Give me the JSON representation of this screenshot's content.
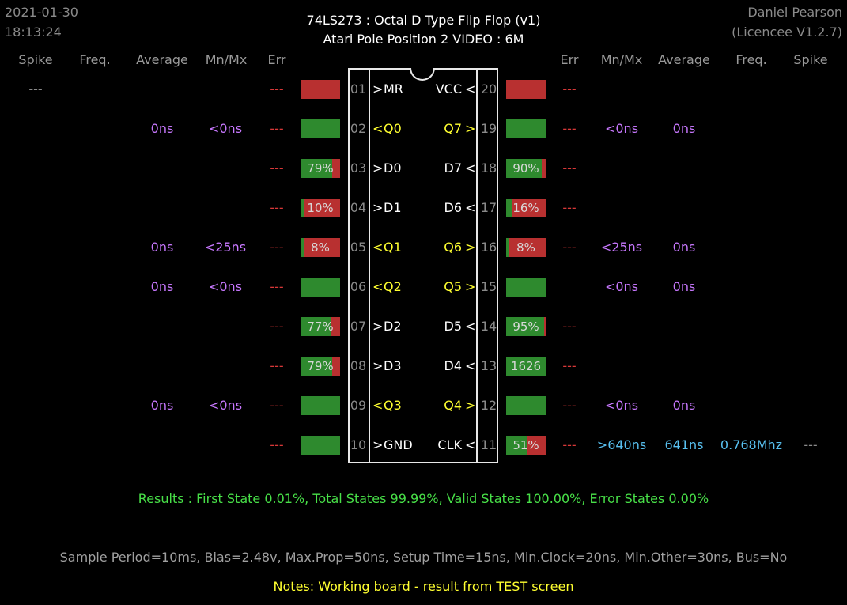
{
  "header": {
    "date": "2021-01-30",
    "time": "18:13:24",
    "title_line1": "74LS273  :  Octal D Type Flip Flop (v1)",
    "title_line2": "Atari Pole Position 2 VIDEO : 6M",
    "author": "Daniel Pearson",
    "licence": "(Licencee V1.2.7)"
  },
  "columns": {
    "left": [
      "Spike",
      "Freq.",
      "Average",
      "Mn/Mx",
      "Err"
    ],
    "right": [
      "Err",
      "Mn/Mx",
      "Average",
      "Freq.",
      "Spike"
    ]
  },
  "left_pins": [
    {
      "num": "01",
      "dir": ">",
      "name": "MR",
      "overline": true,
      "type": "input",
      "err": "---",
      "bar": {
        "fill": 0,
        "label": ""
      },
      "mnmx": "",
      "average": "",
      "freq": "",
      "spike": "---"
    },
    {
      "num": "02",
      "dir": "<",
      "name": "Q0",
      "type": "output",
      "err": "---",
      "bar": {
        "fill": 1,
        "label": ""
      },
      "mnmx": "<0ns",
      "average": "0ns",
      "freq": "",
      "spike": ""
    },
    {
      "num": "03",
      "dir": ">",
      "name": "D0",
      "type": "input",
      "err": "---",
      "bar": {
        "fill": 0.79,
        "label": "79%"
      },
      "mnmx": "",
      "average": "",
      "freq": "",
      "spike": ""
    },
    {
      "num": "04",
      "dir": ">",
      "name": "D1",
      "type": "input",
      "err": "---",
      "bar": {
        "fill": 0.1,
        "label": "10%"
      },
      "mnmx": "",
      "average": "",
      "freq": "",
      "spike": ""
    },
    {
      "num": "05",
      "dir": "<",
      "name": "Q1",
      "type": "output",
      "err": "---",
      "bar": {
        "fill": 0.08,
        "label": "8%"
      },
      "mnmx": "<25ns",
      "average": "0ns",
      "freq": "",
      "spike": ""
    },
    {
      "num": "06",
      "dir": "<",
      "name": "Q2",
      "type": "output",
      "err": "---",
      "bar": {
        "fill": 1,
        "label": ""
      },
      "mnmx": "<0ns",
      "average": "0ns",
      "freq": "",
      "spike": ""
    },
    {
      "num": "07",
      "dir": ">",
      "name": "D2",
      "type": "input",
      "err": "---",
      "bar": {
        "fill": 0.77,
        "label": "77%"
      },
      "mnmx": "",
      "average": "",
      "freq": "",
      "spike": ""
    },
    {
      "num": "08",
      "dir": ">",
      "name": "D3",
      "type": "input",
      "err": "---",
      "bar": {
        "fill": 0.79,
        "label": "79%"
      },
      "mnmx": "",
      "average": "",
      "freq": "",
      "spike": ""
    },
    {
      "num": "09",
      "dir": "<",
      "name": "Q3",
      "type": "output",
      "err": "---",
      "bar": {
        "fill": 1,
        "label": ""
      },
      "mnmx": "<0ns",
      "average": "0ns",
      "freq": "",
      "spike": ""
    },
    {
      "num": "10",
      "dir": ">",
      "name": "GND",
      "type": "input",
      "err": "---",
      "bar": {
        "fill": 1,
        "label": ""
      },
      "mnmx": "",
      "average": "",
      "freq": "",
      "spike": ""
    }
  ],
  "right_pins": [
    {
      "num": "20",
      "dir": "<",
      "name": "VCC",
      "type": "input",
      "err": "---",
      "bar": {
        "fill": 0,
        "label": ""
      },
      "mnmx": "",
      "average": "",
      "freq": "",
      "spike": ""
    },
    {
      "num": "19",
      "dir": ">",
      "name": "Q7",
      "type": "output",
      "err": "---",
      "bar": {
        "fill": 1,
        "label": ""
      },
      "mnmx": "<0ns",
      "average": "0ns",
      "freq": "",
      "spike": ""
    },
    {
      "num": "18",
      "dir": "<",
      "name": "D7",
      "type": "input",
      "err": "---",
      "bar": {
        "fill": 0.9,
        "label": "90%"
      },
      "mnmx": "",
      "average": "",
      "freq": "",
      "spike": ""
    },
    {
      "num": "17",
      "dir": "<",
      "name": "D6",
      "type": "input",
      "err": "---",
      "bar": {
        "fill": 0.16,
        "label": "16%"
      },
      "mnmx": "",
      "average": "",
      "freq": "",
      "spike": ""
    },
    {
      "num": "16",
      "dir": ">",
      "name": "Q6",
      "type": "output",
      "err": "---",
      "bar": {
        "fill": 0.08,
        "label": "8%"
      },
      "mnmx": "<25ns",
      "average": "0ns",
      "freq": "",
      "spike": ""
    },
    {
      "num": "15",
      "dir": ">",
      "name": "Q5",
      "type": "output",
      "err": "",
      "bar": {
        "fill": 1,
        "label": ""
      },
      "mnmx": "<0ns",
      "average": "0ns",
      "freq": "",
      "spike": ""
    },
    {
      "num": "14",
      "dir": "<",
      "name": "D5",
      "type": "input",
      "err": "---",
      "bar": {
        "fill": 0.95,
        "label": "95%"
      },
      "mnmx": "",
      "average": "",
      "freq": "",
      "spike": ""
    },
    {
      "num": "13",
      "dir": "<",
      "name": "D4",
      "type": "input",
      "err": "---",
      "bar": {
        "fill": 1,
        "label": "1626"
      },
      "mnmx": "",
      "average": "",
      "freq": "",
      "spike": ""
    },
    {
      "num": "12",
      "dir": ">",
      "name": "Q4",
      "type": "output",
      "err": "---",
      "bar": {
        "fill": 1,
        "label": ""
      },
      "mnmx": "<0ns",
      "average": "0ns",
      "freq": "",
      "spike": ""
    },
    {
      "num": "11",
      "dir": "<",
      "name": "CLK",
      "type": "input",
      "err": "---",
      "bar": {
        "fill": 0.51,
        "label": "51%"
      },
      "mnmx": ">640ns",
      "average": "641ns",
      "freq": "0.768Mhz",
      "spike": "---",
      "highlight": true
    }
  ],
  "results": "Results  :  First State 0.01%,  Total States 99.99%,  Valid States 100.00%,  Error States 0.00%",
  "settings": "Sample Period=10ms,  Bias=2.48v,  Max.Prop=50ns,  Setup Time=15ns,  Min.Clock=20ns,  Min.Other=30ns,  Bus=No",
  "notes": "Notes:  Working board - result from TEST screen",
  "colors": {
    "bar_good": "#2e8a2e",
    "bar_bad": "#b83030",
    "output_pin": "#ffff30",
    "input_pin": "#ffffff",
    "timing": "#c878ff",
    "clock_timing": "#58c0f0",
    "err": "#d83838",
    "results": "#48e048"
  }
}
